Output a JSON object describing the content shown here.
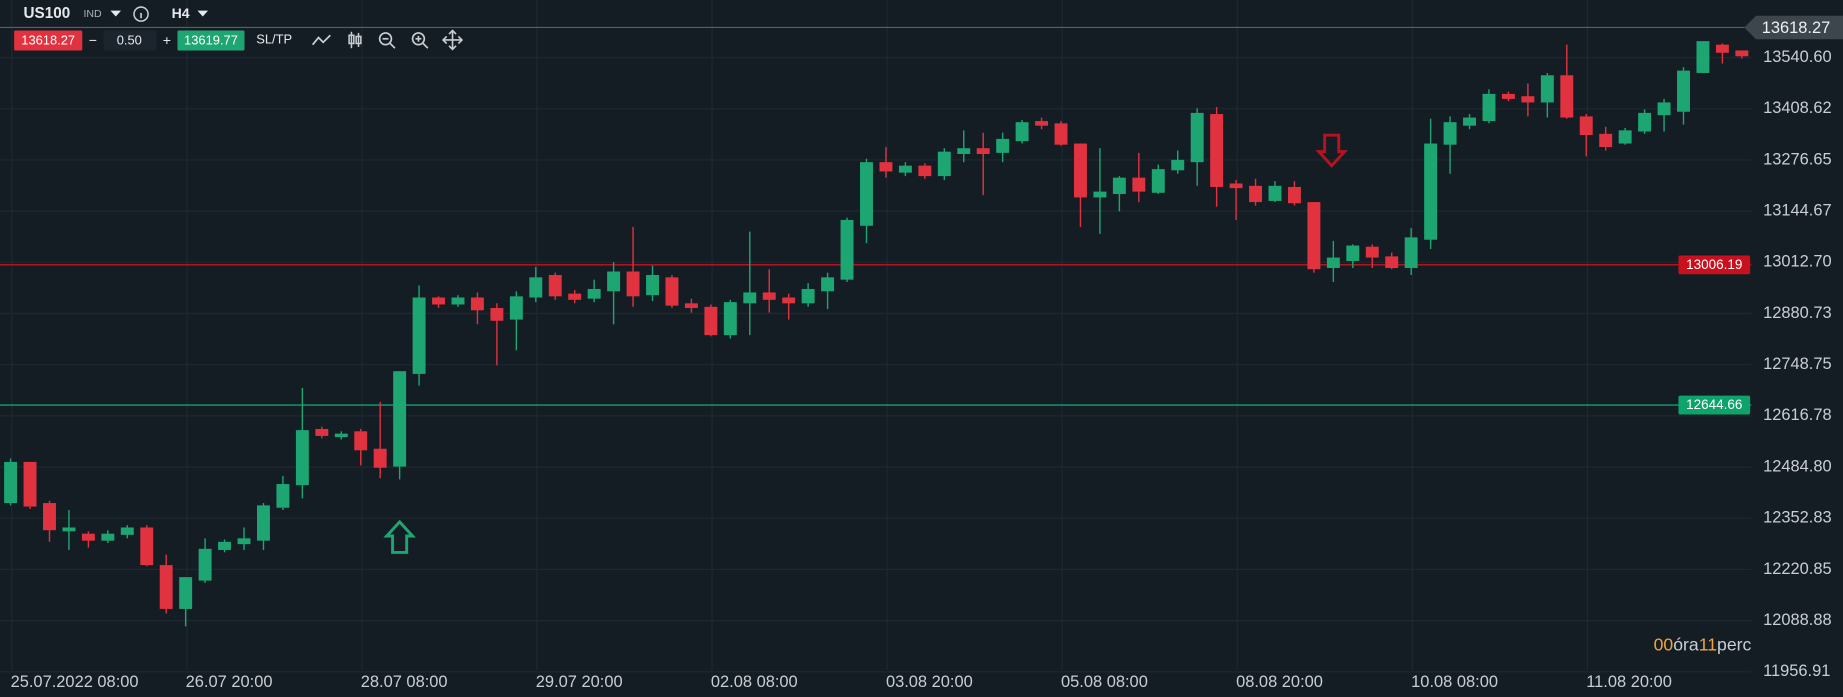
{
  "toolbar": {
    "symbol": "US100",
    "market": "IND",
    "timeframe": "H4",
    "sell_price": "13618.27",
    "minus": "−",
    "spread": "0.50",
    "plus": "+",
    "buy_price": "13619.77",
    "sl_tp": "SL/TP"
  },
  "timer": {
    "hours": "00",
    "hours_unit": "óra",
    "minutes": "11",
    "minutes_unit": "perc"
  },
  "chart_data": {
    "type": "candlestick",
    "up_color": "#1ea672",
    "down_color": "#e0323f",
    "grid": true,
    "categories": [
      "25.07.2022 08:00",
      null,
      null,
      null,
      null,
      null,
      null,
      null,
      null,
      "26.07 20:00",
      null,
      null,
      null,
      null,
      null,
      null,
      null,
      null,
      "28.07 08:00",
      null,
      null,
      null,
      null,
      null,
      null,
      null,
      null,
      "29.07 20:00",
      null,
      null,
      null,
      null,
      null,
      null,
      null,
      null,
      "02.08 08:00",
      null,
      null,
      null,
      null,
      null,
      null,
      null,
      null,
      "03.08 20:00",
      null,
      null,
      null,
      null,
      null,
      null,
      null,
      null,
      "05.08 08:00",
      null,
      null,
      null,
      null,
      null,
      null,
      null,
      null,
      "08.08 20:00",
      null,
      null,
      null,
      null,
      null,
      null,
      null,
      null,
      "10.08 08:00",
      null,
      null,
      null,
      null,
      null,
      null,
      null,
      null,
      "11.08 20:00",
      null,
      null,
      null,
      null,
      null,
      null,
      null,
      null
    ],
    "open": [
      12392,
      12498,
      12392,
      12319,
      12313,
      12295,
      12310,
      12329,
      12232,
      12119,
      12192,
      12271,
      12286,
      12295,
      12380,
      12438,
      12583,
      12562,
      12577,
      12532,
      12486,
      12725,
      12922,
      12904,
      12922,
      12895,
      12865,
      12922,
      12980,
      12932,
      12919,
      12938,
      12989,
      12928,
      12974,
      12907,
      12898,
      12825,
      12907,
      12935,
      12922,
      12907,
      12938,
      12968,
      13107,
      13271,
      13244,
      13262,
      13235,
      13292,
      13307,
      13295,
      13325,
      13377,
      13371,
      13319,
      13180,
      13189,
      13231,
      13192,
      13250,
      13271,
      13395,
      13216,
      13210,
      13171,
      13207,
      13168,
      12998,
      13016,
      13053,
      13028,
      12998,
      13071,
      13316,
      13365,
      13377,
      13447,
      13441,
      13425,
      13495,
      13389,
      13344,
      13319,
      13350,
      13392,
      13401,
      13501,
      13574,
      13559
    ],
    "high": [
      12507,
      12498,
      12398,
      12374,
      12319,
      12322,
      12335,
      12335,
      12259,
      12201,
      12301,
      12298,
      12329,
      12392,
      12462,
      12689,
      12589,
      12577,
      12583,
      12653,
      12732,
      12953,
      12925,
      12928,
      12935,
      12907,
      12938,
      13001,
      12986,
      12941,
      12968,
      13013,
      13104,
      13004,
      12980,
      12919,
      12904,
      12916,
      13092,
      12995,
      12932,
      12959,
      12986,
      13128,
      13280,
      13310,
      13271,
      13268,
      13307,
      13353,
      13347,
      13347,
      13380,
      13386,
      13377,
      13319,
      13307,
      13235,
      13295,
      13265,
      13301,
      13410,
      13413,
      13225,
      13228,
      13222,
      13222,
      13168,
      13068,
      13059,
      13059,
      13038,
      13101,
      13383,
      13389,
      13395,
      13459,
      13453,
      13474,
      13501,
      13574,
      13395,
      13362,
      13359,
      13407,
      13434,
      13516,
      13583,
      13577,
      13559
    ],
    "low": [
      12386,
      12377,
      12292,
      12271,
      12277,
      12289,
      12301,
      12229,
      12107,
      12074,
      12186,
      12265,
      12271,
      12271,
      12374,
      12404,
      12559,
      12556,
      12489,
      12456,
      12453,
      12695,
      12895,
      12898,
      12853,
      12747,
      12786,
      12910,
      12916,
      12907,
      12910,
      12853,
      12898,
      12913,
      12895,
      12883,
      12822,
      12816,
      12825,
      12883,
      12865,
      12898,
      12892,
      12962,
      13062,
      13231,
      13235,
      13228,
      13225,
      13271,
      13186,
      13271,
      13319,
      13356,
      13313,
      13104,
      13086,
      13144,
      13168,
      13189,
      13241,
      13210,
      13156,
      13122,
      13159,
      13168,
      13159,
      12986,
      12962,
      12998,
      12998,
      12995,
      12980,
      13047,
      13241,
      13356,
      13371,
      13428,
      13389,
      13386,
      13383,
      13286,
      13301,
      13316,
      13344,
      13350,
      13368,
      13501,
      13525,
      13538
    ],
    "close": [
      12498,
      12383,
      12322,
      12329,
      12295,
      12313,
      12329,
      12232,
      12119,
      12201,
      12274,
      12292,
      12301,
      12386,
      12441,
      12580,
      12565,
      12571,
      12528,
      12483,
      12732,
      12922,
      12904,
      12922,
      12889,
      12862,
      12925,
      12974,
      12925,
      12916,
      12944,
      12989,
      12925,
      12980,
      12901,
      12895,
      12825,
      12910,
      12935,
      12916,
      12907,
      12944,
      12974,
      13122,
      13271,
      13247,
      13262,
      13235,
      13298,
      13307,
      13292,
      13331,
      13374,
      13365,
      13316,
      13180,
      13195,
      13231,
      13195,
      13253,
      13277,
      13398,
      13207,
      13204,
      13168,
      13210,
      13165,
      12995,
      13025,
      13056,
      13025,
      12998,
      13077,
      13319,
      13374,
      13386,
      13447,
      13434,
      13425,
      13495,
      13386,
      13341,
      13310,
      13353,
      13398,
      13425,
      13507,
      13583,
      13553,
      13544
    ],
    "ylim": [
      11961.6,
      13689.1
    ],
    "yticks": [
      {
        "value": 13540.6,
        "label": "13540.60"
      },
      13408.62,
      13276.65,
      13144.67,
      {
        "value": 13012.7,
        "label": "13012.70"
      },
      12880.73,
      12748.75,
      12616.78,
      {
        "value": 12484.8,
        "label": "12484.80"
      },
      12352.83,
      12220.85,
      12088.88,
      11956.91
    ],
    "current_price": 13618.27,
    "price_lines": [
      {
        "value": 13006.19,
        "color": "#c8101f"
      },
      {
        "value": 12644.66,
        "color": "#0ea36b"
      }
    ]
  }
}
